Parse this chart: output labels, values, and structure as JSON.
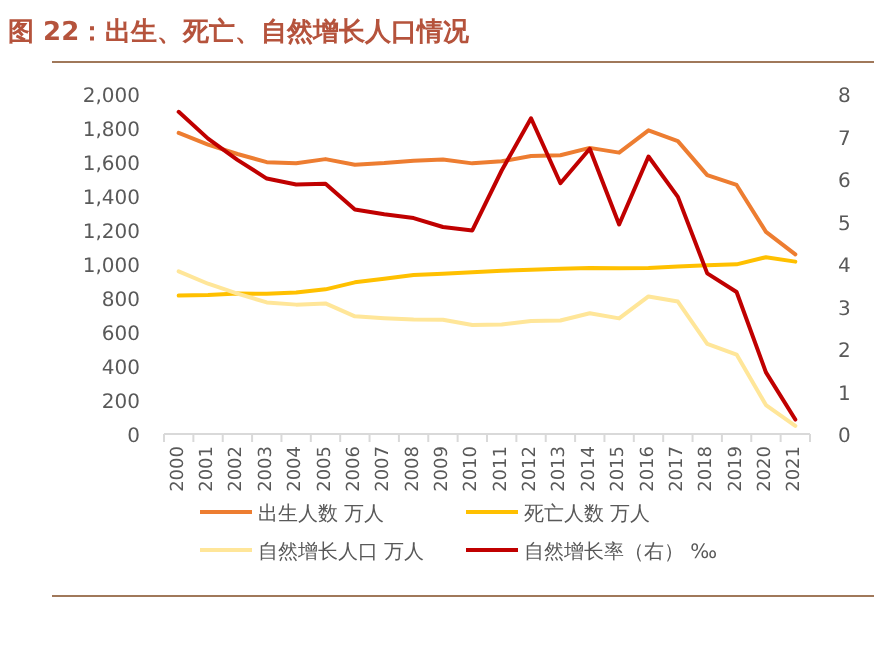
{
  "chart_data": {
    "type": "line",
    "title": "图 22：出生、死亡、自然增长人口情况",
    "categories": [
      "2000",
      "2001",
      "2002",
      "2003",
      "2004",
      "2005",
      "2006",
      "2007",
      "2008",
      "2009",
      "2010",
      "2011",
      "2012",
      "2013",
      "2014",
      "2015",
      "2016",
      "2017",
      "2018",
      "2019",
      "2020",
      "2021"
    ],
    "series": [
      {
        "name": "出生人数 万人",
        "color": "#ed7d31",
        "values": [
          1771,
          1702,
          1647,
          1599,
          1593,
          1617,
          1584,
          1594,
          1608,
          1615,
          1592,
          1604,
          1635,
          1640,
          1683,
          1655,
          1786,
          1723,
          1523,
          1465,
          1189,
          1057
        ]
      },
      {
        "name": "死亡人数 万人",
        "color": "#ffc000",
        "values": [
          814,
          818,
          826,
          825,
          832,
          851,
          892,
          913,
          935,
          943,
          951,
          960,
          966,
          972,
          977,
          975,
          977,
          986,
          993,
          998,
          1040,
          1014
        ]
      },
      {
        "name": "自然增长人口 万人",
        "color": "#ffe699",
        "values": [
          957,
          884,
          826,
          774,
          761,
          768,
          692,
          681,
          673,
          672,
          641,
          644,
          665,
          668,
          710,
          680,
          809,
          779,
          530,
          467,
          170,
          48
        ]
      },
      {
        "name": "自然增长率（右） ‰",
        "color": "#c00000",
        "axis": "y2",
        "values": [
          7.58,
          6.95,
          6.45,
          6.01,
          5.87,
          5.89,
          5.28,
          5.17,
          5.08,
          4.87,
          4.79,
          6.2,
          7.43,
          5.9,
          6.71,
          4.93,
          6.53,
          5.58,
          3.78,
          3.34,
          1.45,
          0.34
        ]
      }
    ],
    "ylim": [
      0,
      2000
    ],
    "yticks": [
      {
        "value": 0,
        "label": "0"
      },
      {
        "value": 200,
        "label": "200"
      },
      {
        "value": 400,
        "label": "400"
      },
      {
        "value": 600,
        "label": "600"
      },
      {
        "value": 800,
        "label": "800"
      },
      {
        "value": 1000,
        "label": "1,000"
      },
      {
        "value": 1200,
        "label": "1,200"
      },
      {
        "value": 1400,
        "label": "1,400"
      },
      {
        "value": 1600,
        "label": "1,600"
      },
      {
        "value": 1800,
        "label": "1,800"
      },
      {
        "value": 2000,
        "label": "2,000"
      }
    ],
    "y2lim": [
      0,
      8
    ],
    "y2ticks": [
      0,
      1,
      2,
      3,
      4,
      5,
      6,
      7,
      8
    ],
    "grid": false,
    "legend": "bottom"
  }
}
